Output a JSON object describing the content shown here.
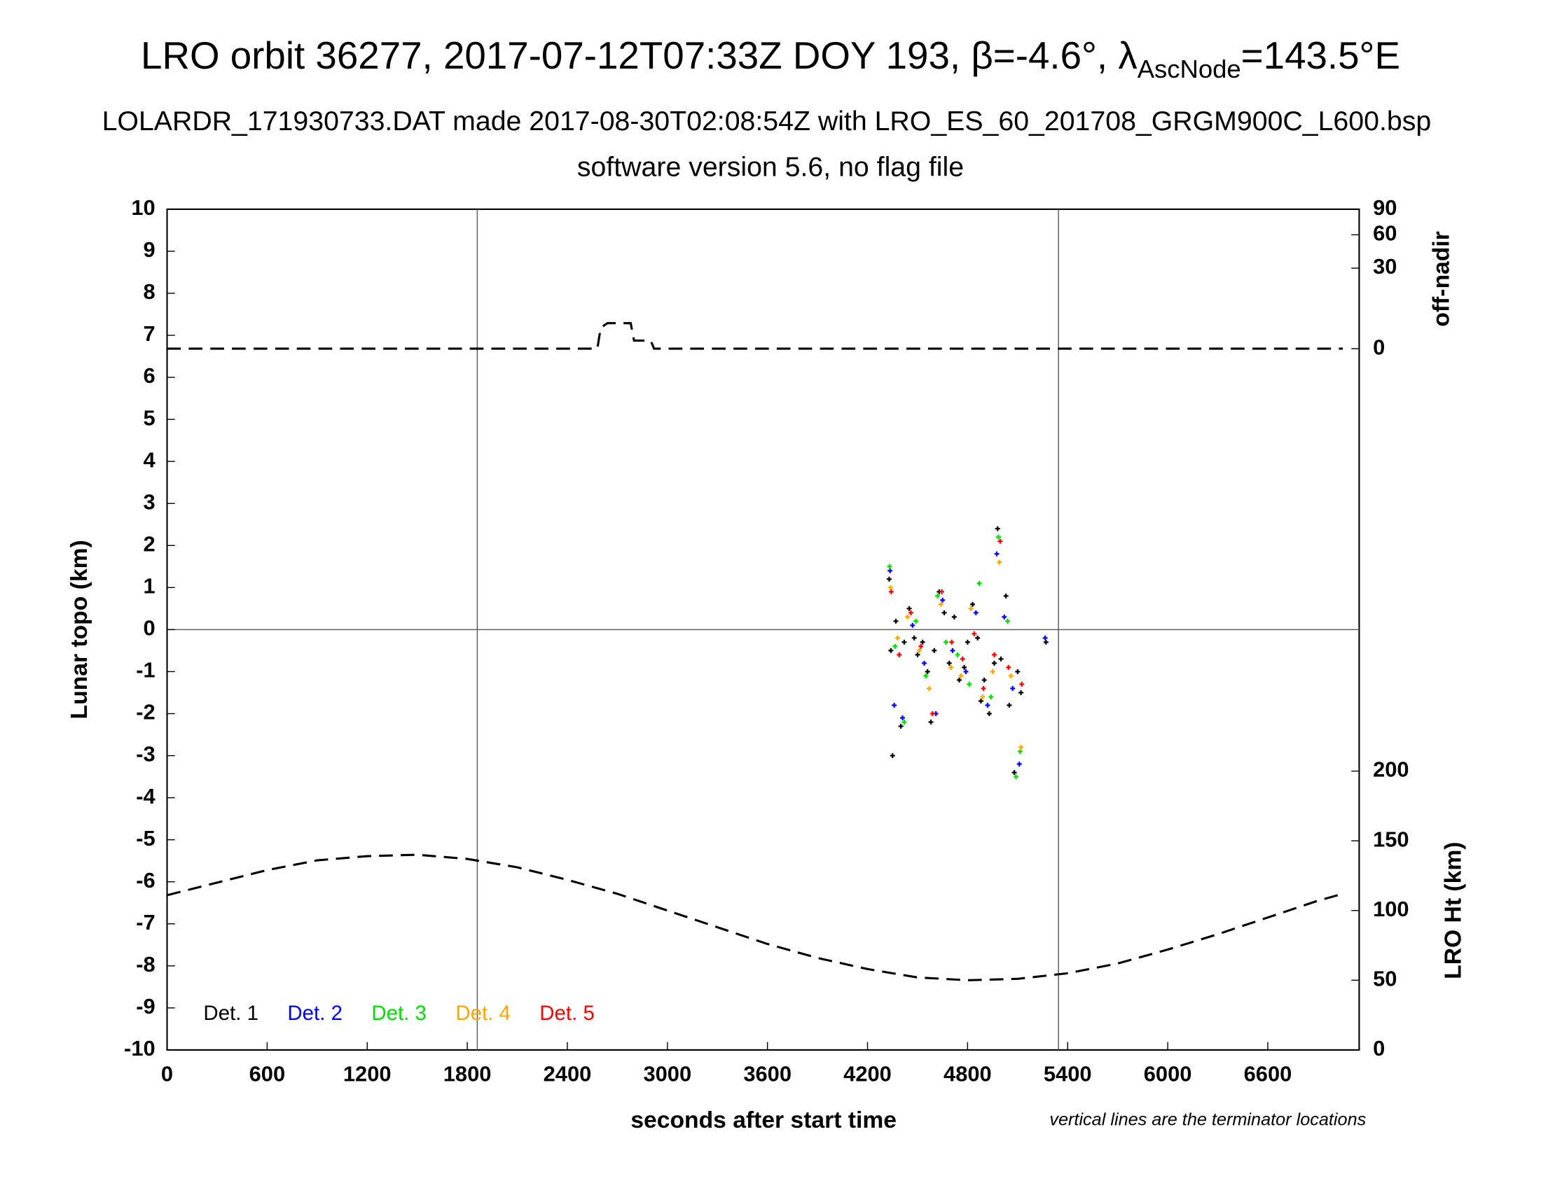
{
  "chart_data": {
    "type": "scatter",
    "title_parts": [
      "LRO orbit 36277, 2017-07-12T07:33Z DOY 193, β=-4.6°, λ",
      "AscNode",
      "=143.5°E"
    ],
    "subtitle": "LOLARDR_171930733.DAT made 2017-08-30T02:08:54Z with LRO_ES_60_201708_GRGM900C_L600.bsp",
    "subtitle2": "software version 5.6, no flag file",
    "xlabel": "seconds after start time",
    "ylabel": "Lunar topo (km)",
    "y2label": "off-nadir",
    "y3label": "LRO Ht (km)",
    "note": "vertical lines are the terminator locations",
    "xlim": [
      0,
      7148
    ],
    "xticks": [
      0,
      600,
      1200,
      1800,
      2400,
      3000,
      3600,
      4200,
      4800,
      5400,
      6000,
      6600
    ],
    "ylim": [
      -10,
      10
    ],
    "yticks": [
      -10,
      -9,
      -8,
      -7,
      -6,
      -5,
      -4,
      -3,
      -2,
      -1,
      0,
      1,
      2,
      3,
      4,
      5,
      6,
      7,
      8,
      9,
      10
    ],
    "y2lim": [
      0,
      90
    ],
    "y2scale": "sqrt",
    "y2ticks": [
      0,
      30,
      60,
      90
    ],
    "y3lim": [
      0,
      603
    ],
    "y3ticks": [
      0,
      50,
      100,
      150,
      200
    ],
    "terminators": [
      1860,
      5345
    ],
    "series": [
      {
        "name": "Det. 1",
        "color": "#000000",
        "x": [
          4330,
          4340,
          4350,
          4370,
          4400,
          4420,
          4450,
          4480,
          4500,
          4530,
          4560,
          4580,
          4600,
          4630,
          4660,
          4690,
          4720,
          4750,
          4780,
          4800,
          4830,
          4860,
          4880,
          4900,
          4930,
          4960,
          4980,
          5000,
          5030,
          5050,
          5080,
          5100,
          5120,
          5270
        ],
        "values": [
          1.2,
          -0.5,
          -3.0,
          0.2,
          -2.3,
          -0.3,
          0.5,
          -0.2,
          -0.6,
          -0.3,
          -1.0,
          -2.2,
          -0.5,
          0.9,
          0.4,
          -0.8,
          0.3,
          -1.2,
          -0.9,
          -0.3,
          0.6,
          -0.2,
          -1.7,
          -1.2,
          -2.0,
          -0.8,
          2.4,
          -0.7,
          0.8,
          -1.8,
          -3.4,
          -1.0,
          -1.5,
          -0.3
        ]
      },
      {
        "name": "Det. 2",
        "color": "#0000ff",
        "x": [
          4335,
          4360,
          4410,
          4470,
          4540,
          4610,
          4650,
          4710,
          4790,
          4850,
          4920,
          4975,
          5020,
          5070,
          5110,
          5265
        ],
        "values": [
          1.4,
          -1.8,
          -2.1,
          0.1,
          -0.8,
          -2.0,
          0.7,
          -0.5,
          -1.0,
          0.4,
          -1.8,
          1.8,
          0.3,
          -1.4,
          -3.2,
          -0.2
        ]
      },
      {
        "name": "Det. 3",
        "color": "#00e000",
        "x": [
          4332,
          4365,
          4420,
          4490,
          4550,
          4620,
          4670,
          4740,
          4810,
          4870,
          4940,
          4985,
          5040,
          5090,
          5115
        ],
        "values": [
          1.5,
          -0.4,
          -2.2,
          0.2,
          -1.1,
          0.8,
          -0.3,
          -0.6,
          -1.3,
          1.1,
          -1.6,
          2.2,
          0.2,
          -3.5,
          -2.9
        ]
      },
      {
        "name": "Det. 4",
        "color": "#ffa500",
        "x": [
          4338,
          4380,
          4440,
          4510,
          4570,
          4640,
          4700,
          4760,
          4820,
          4890,
          4950,
          4990,
          5060,
          5120
        ],
        "values": [
          1.0,
          -0.2,
          0.3,
          -0.5,
          -1.4,
          0.6,
          -0.9,
          -1.1,
          0.5,
          -1.6,
          -1.0,
          1.6,
          -1.1,
          -2.8
        ]
      },
      {
        "name": "Det. 5",
        "color": "#ff0000",
        "x": [
          4342,
          4390,
          4460,
          4520,
          4590,
          4645,
          4705,
          4770,
          4840,
          4895,
          4960,
          4995,
          5045,
          5125
        ],
        "values": [
          0.9,
          -0.6,
          0.4,
          -0.4,
          -2.0,
          0.9,
          -0.3,
          -0.7,
          -0.1,
          -1.4,
          -0.6,
          2.1,
          -0.9,
          -1.3
        ]
      },
      {
        "type": "line",
        "axis": "y2",
        "color": "#000000",
        "x": [
          0,
          2580,
          2600,
          2640,
          2780,
          2800,
          2900,
          2920,
          3000,
          7050
        ],
        "values": [
          0,
          0,
          2,
          3,
          3,
          0.3,
          0.3,
          0,
          0,
          0
        ]
      },
      {
        "type": "line",
        "axis": "y3",
        "color": "#000000",
        "x": [
          0,
          300,
          600,
          900,
          1200,
          1500,
          1800,
          2100,
          2400,
          2700,
          3000,
          3300,
          3600,
          3900,
          4200,
          4500,
          4800,
          5100,
          5400,
          5700,
          6000,
          6300,
          6600,
          6900,
          7050
        ],
        "values": [
          111,
          120,
          129,
          136,
          139,
          140,
          137,
          131,
          122,
          112,
          100,
          88,
          76,
          66,
          58,
          52,
          50,
          51,
          55,
          62,
          72,
          83,
          95,
          107,
          112
        ]
      }
    ]
  }
}
